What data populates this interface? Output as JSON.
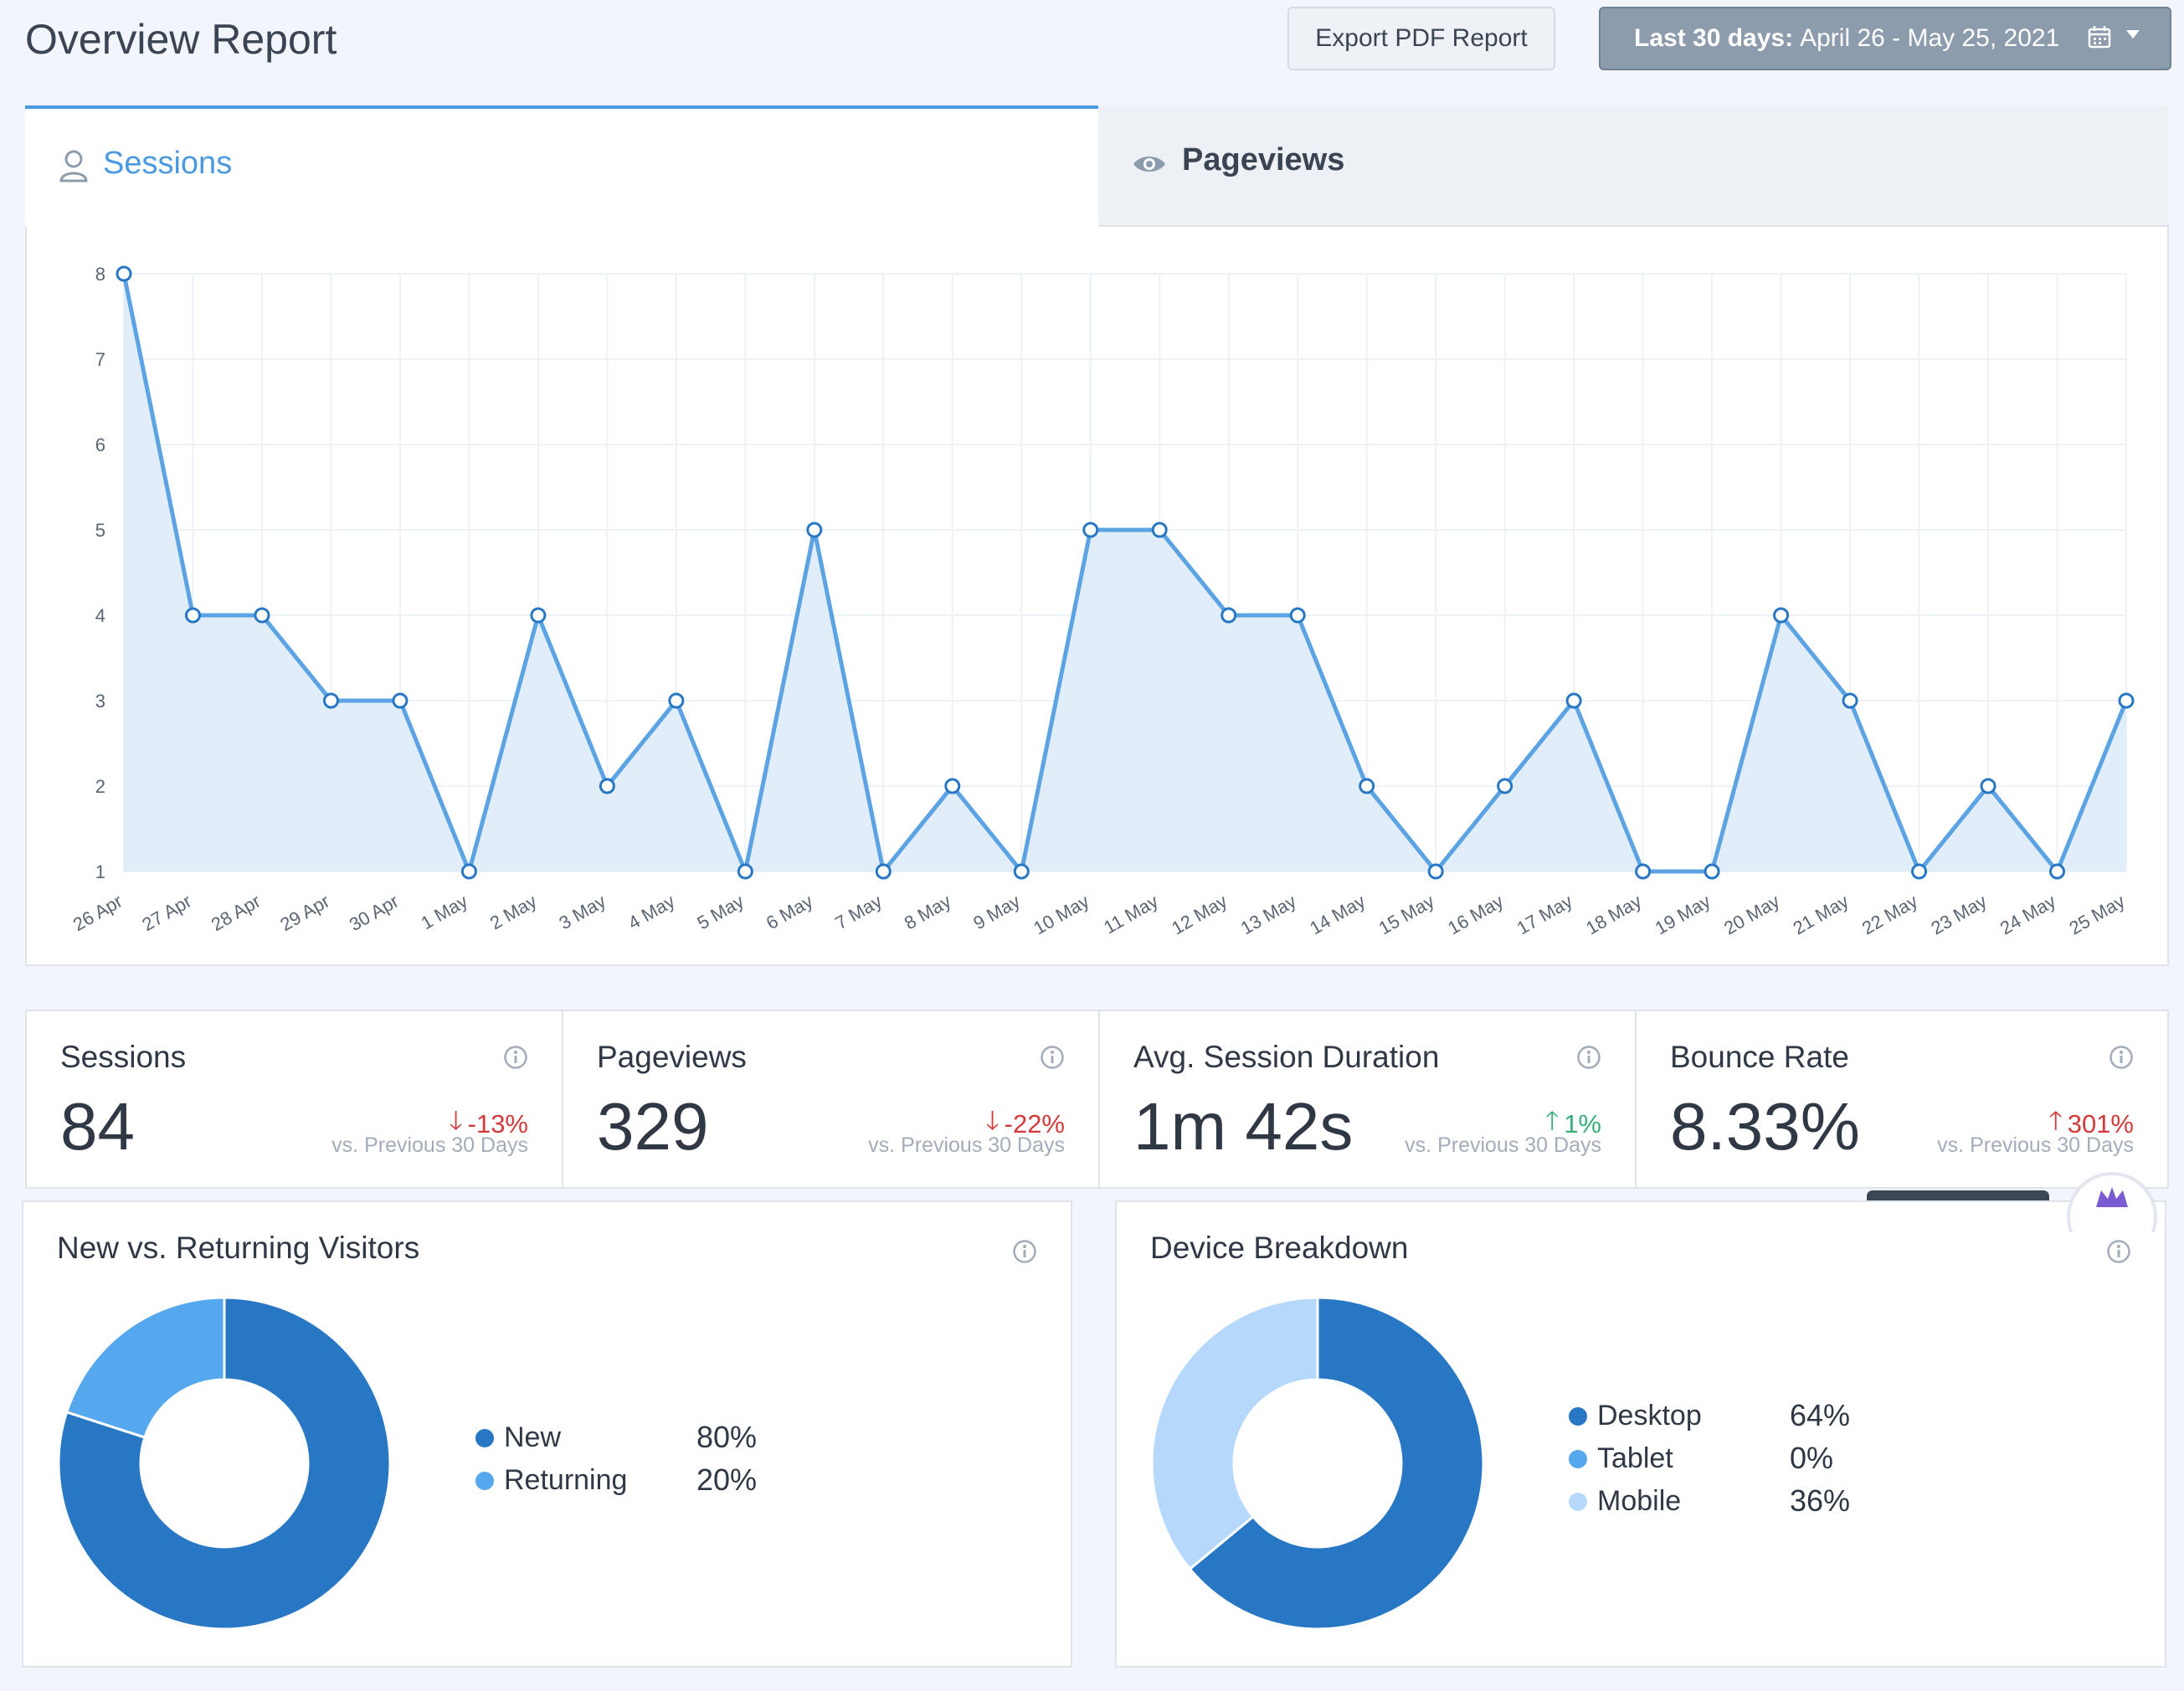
{
  "header": {
    "title": "Overview Report",
    "export_label": "Export PDF Report",
    "date_prefix": "Last 30 days:",
    "date_range": "April 26 - May 25, 2021"
  },
  "tabs": [
    {
      "label": "Sessions",
      "icon": "user-icon",
      "active": true
    },
    {
      "label": "Pageviews",
      "icon": "eye-icon",
      "active": false
    }
  ],
  "colors": {
    "accent": "#4b9ae0",
    "line": "#5ba3e3",
    "area": "#e1edf9",
    "dark_blue": "#2777c4",
    "mid_blue": "#56a8ee",
    "light_blue": "#b6d9fb",
    "down": "#d43a3a",
    "up": "#39b07a"
  },
  "chart_data": {
    "type": "area",
    "x": [
      "26 Apr",
      "27 Apr",
      "28 Apr",
      "29 Apr",
      "30 Apr",
      "1 May",
      "2 May",
      "3 May",
      "4 May",
      "5 May",
      "6 May",
      "7 May",
      "8 May",
      "9 May",
      "10 May",
      "11 May",
      "12 May",
      "13 May",
      "14 May",
      "15 May",
      "16 May",
      "17 May",
      "18 May",
      "19 May",
      "20 May",
      "21 May",
      "22 May",
      "23 May",
      "24 May",
      "25 May"
    ],
    "series": [
      {
        "values": [
          8,
          4,
          4,
          3,
          3,
          1,
          4,
          2,
          3,
          1,
          5,
          1,
          2,
          1,
          5,
          5,
          4,
          4,
          2,
          1,
          2,
          3,
          1,
          1,
          4,
          3,
          1,
          2,
          1,
          3
        ]
      }
    ],
    "y_ticks": [
      "1",
      "2",
      "3",
      "4",
      "5",
      "6",
      "7",
      "8"
    ],
    "ylim": [
      1,
      8
    ],
    "grid": true
  },
  "stats": [
    {
      "title": "Sessions",
      "value": "84",
      "change": "-13%",
      "direction": "down",
      "sub": "vs. Previous 30 Days"
    },
    {
      "title": "Pageviews",
      "value": "329",
      "change": "-22%",
      "direction": "down",
      "sub": "vs. Previous 30 Days"
    },
    {
      "title": "Avg. Session Duration",
      "value": "1m 42s",
      "change": "1%",
      "direction": "up",
      "sub": "vs. Previous 30 Days"
    },
    {
      "title": "Bounce Rate",
      "value": "8.33%",
      "change": "301%",
      "direction": "up",
      "sub": "vs. Previous 30 Days"
    }
  ],
  "visitors": {
    "title": "New vs. Returning Visitors",
    "items": [
      {
        "label": "New",
        "value": "80%",
        "percent": 80
      },
      {
        "label": "Returning",
        "value": "20%",
        "percent": 20
      }
    ]
  },
  "devices": {
    "title": "Device Breakdown",
    "items": [
      {
        "label": "Desktop",
        "value": "64%",
        "percent": 64
      },
      {
        "label": "Tablet",
        "value": "0%",
        "percent": 0
      },
      {
        "label": "Mobile",
        "value": "36%",
        "percent": 36
      }
    ]
  }
}
